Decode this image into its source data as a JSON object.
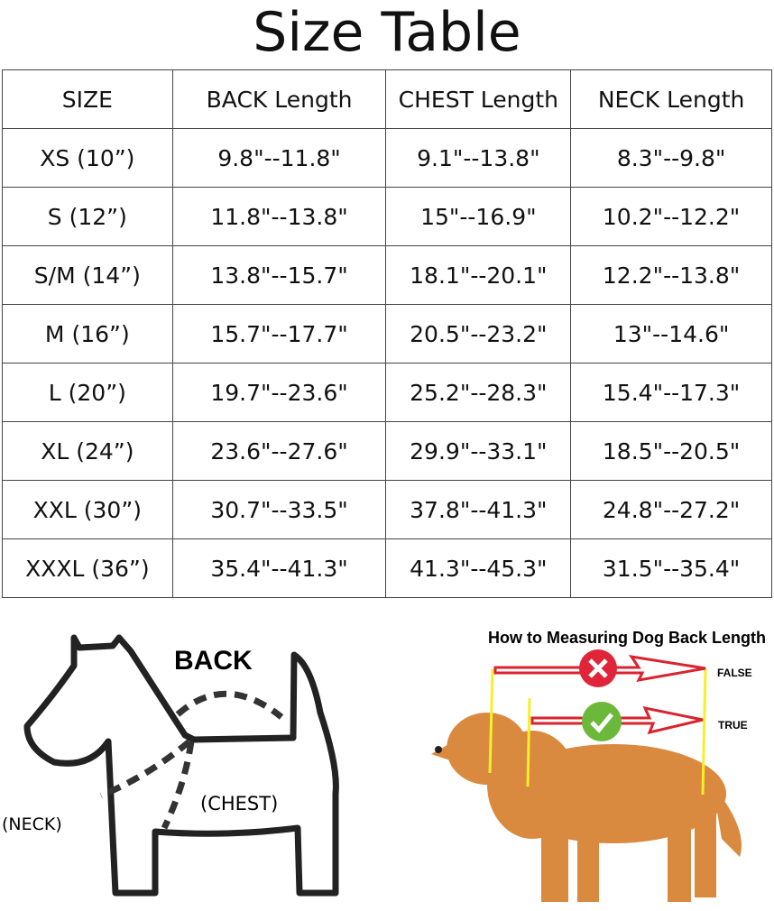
{
  "title": "Size Table",
  "table": {
    "headers": [
      "SIZE",
      "BACK Length",
      "CHEST Length",
      "NECK Length"
    ],
    "rows": [
      [
        "XS (10”)",
        "9.8\"--11.8\"",
        "9.1\"--13.8\"",
        "8.3\"--9.8\""
      ],
      [
        "S (12”)",
        "11.8\"--13.8\"",
        "15\"--16.9\"",
        "10.2\"--12.2\""
      ],
      [
        "S/M (14”)",
        "13.8\"--15.7\"",
        "18.1\"--20.1\"",
        "12.2\"--13.8\""
      ],
      [
        "M (16”)",
        "15.7\"--17.7\"",
        "20.5\"--23.2\"",
        "13\"--14.6\""
      ],
      [
        "L (20”)",
        "19.7\"--23.6\"",
        "25.2\"--28.3\"",
        "15.4\"--17.3\""
      ],
      [
        "XL (24”)",
        "23.6\"--27.6\"",
        "29.9\"--33.1\"",
        "18.5\"--20.5\""
      ],
      [
        "XXL (30”)",
        "30.7\"--33.5\"",
        "37.8\"--41.3\"",
        "24.8\"--27.2\""
      ],
      [
        "XXXL (36”)",
        "35.4\"--41.3\"",
        "41.3\"--45.3\"",
        "31.5\"--35.4\""
      ]
    ]
  },
  "diagram": {
    "back": "BACK",
    "chest": "(CHEST)",
    "neck": "(NECK)"
  },
  "photo": {
    "heading": "How to Measuring Dog Back Length",
    "false_label": "FALSE",
    "true_label": "TRUE",
    "colors": {
      "arrow": "#d9232e",
      "measure_line": "#f5f02a",
      "wrong": "#e0253a",
      "right": "#6cb83a",
      "dog": "#d98a3f"
    }
  }
}
